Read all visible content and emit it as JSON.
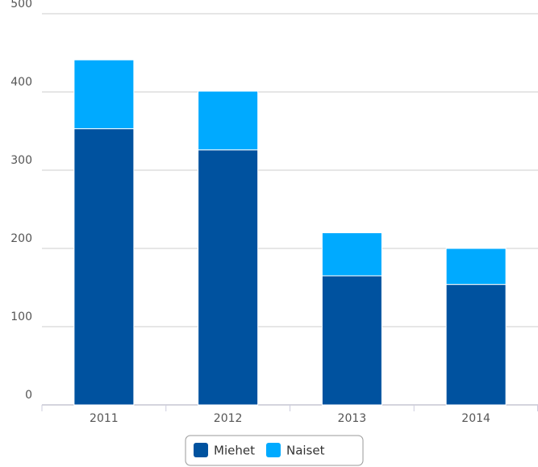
{
  "chart_data": {
    "type": "stacked_bar",
    "categories": [
      "2011",
      "2012",
      "2013",
      "2014"
    ],
    "series": [
      {
        "name": "Miehet",
        "color": "#00529f",
        "values": [
          353,
          326,
          165,
          154
        ]
      },
      {
        "name": "Naiset",
        "color": "#00aaff",
        "values": [
          88,
          75,
          55,
          46
        ]
      }
    ],
    "ylim": [
      0,
      500
    ],
    "yticks": [
      0,
      100,
      200,
      300,
      400,
      500
    ],
    "grid": true,
    "legend": "bottom"
  }
}
